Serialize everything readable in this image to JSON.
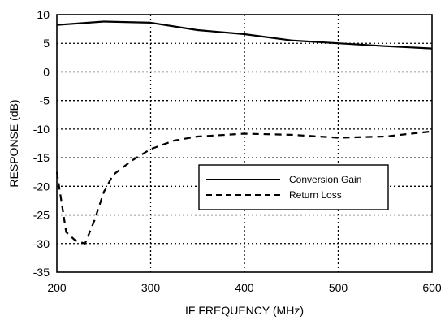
{
  "chart_data": {
    "type": "line",
    "title": "",
    "xlabel": "IF FREQUENCY (MHz)",
    "ylabel": "RESPONSE (dB)",
    "xlim": [
      200,
      600
    ],
    "ylim": [
      -35,
      10
    ],
    "x_ticks": [
      200,
      300,
      400,
      500,
      600
    ],
    "y_ticks": [
      10,
      5,
      0,
      -5,
      -10,
      -15,
      -20,
      -25,
      -30,
      -35
    ],
    "x_tick_labels": [
      "200",
      "300",
      "400",
      "500",
      "600"
    ],
    "y_tick_labels": [
      "10",
      "5",
      "0",
      "-5",
      "-10",
      "-15",
      "-20",
      "-25",
      "-30",
      "-35"
    ],
    "grid": true,
    "legend_position": "center-right",
    "series": [
      {
        "name": "Conversion Gain",
        "style": "solid",
        "color": "#000000",
        "x": [
          200,
          250,
          300,
          350,
          400,
          450,
          500,
          550,
          600
        ],
        "y": [
          8.2,
          8.8,
          8.6,
          7.3,
          6.6,
          5.5,
          5.0,
          4.5,
          4.1
        ]
      },
      {
        "name": "Return Loss",
        "style": "dashed",
        "color": "#000000",
        "x": [
          200,
          210,
          220,
          230,
          240,
          250,
          260,
          280,
          300,
          325,
          350,
          400,
          450,
          500,
          550,
          600
        ],
        "y": [
          -17.5,
          -28,
          -29.5,
          -30,
          -26,
          -21,
          -18,
          -15.5,
          -13.5,
          -12,
          -11.3,
          -10.8,
          -11.0,
          -11.5,
          -11.3,
          -10.4
        ]
      }
    ]
  }
}
